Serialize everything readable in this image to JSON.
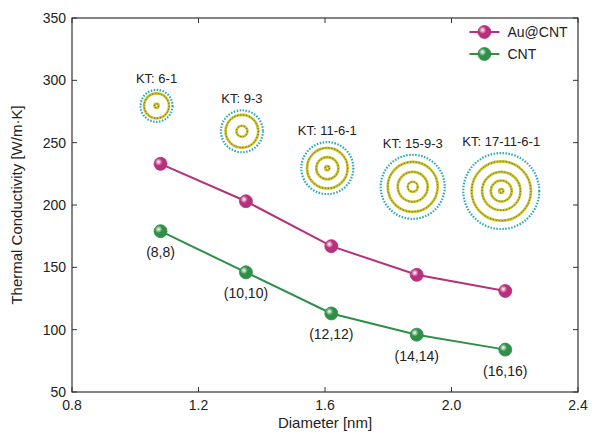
{
  "chart_data": {
    "type": "line",
    "x_label": "Diameter [nm]",
    "y_label": "Thermal Conductivity [W/m·K]",
    "x": [
      1.08,
      1.35,
      1.62,
      1.89,
      2.17
    ],
    "series": [
      {
        "name": "Au@CNT",
        "color": "#b8307c",
        "marker": "circle",
        "line_style": "solid",
        "values": [
          233,
          203,
          167,
          144,
          131
        ]
      },
      {
        "name": "CNT",
        "color": "#2f8f46",
        "marker": "circle",
        "line_style": "solid",
        "values": [
          179,
          146,
          113,
          96,
          84
        ],
        "labels": [
          "(8,8)",
          "(10,10)",
          "(12,12)",
          "(14,14)",
          "(16,16)"
        ]
      }
    ],
    "insets": [
      "KT: 6-1",
      "KT: 9-3",
      "KT: 11-6-1",
      "KT: 15-9-3",
      "KT: 17-11-6-1"
    ],
    "xlim": [
      0.8,
      2.4
    ],
    "xticks": [
      0.8,
      1.2,
      1.6,
      {
        "value": 2,
        "label": "2.0"
      },
      2.4
    ],
    "ylim": [
      50,
      350
    ],
    "yticks": [
      50,
      100,
      150,
      200,
      250,
      300,
      350
    ],
    "legend": "upper right",
    "grid": false
  }
}
